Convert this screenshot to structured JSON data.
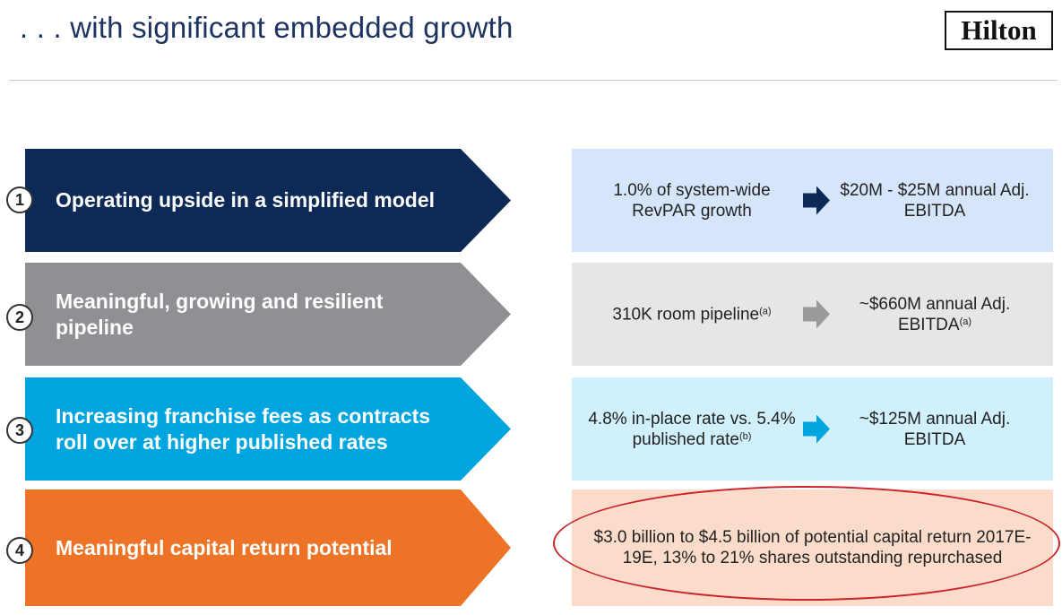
{
  "header": {
    "title": ". . . with significant embedded growth",
    "logo_text": "Hilton"
  },
  "colors": {
    "navy": "#0d2a57",
    "gray": "#8e9093",
    "cyan": "#00a5df",
    "orange": "#ed7326",
    "box_blue": "#d5e5fa",
    "box_gray": "#e6e6e6",
    "box_cyan": "#d0f0fb",
    "box_peach": "#fbdcca",
    "highlight_red": "#cc2229"
  },
  "rows": [
    {
      "number": "1",
      "label": "Operating upside in a simplified model",
      "left": "1.0% of system-wide RevPAR growth",
      "left_note": "",
      "right": "$20M - $25M annual Adj. EBITDA",
      "right_note": "",
      "arrow_icon": "right-arrow-icon"
    },
    {
      "number": "2",
      "label": "Meaningful, growing and resilient pipeline",
      "left": "310K room pipeline",
      "left_note": "(a)",
      "right": "~$660M annual Adj. EBITDA",
      "right_note": "(a)",
      "arrow_icon": "right-arrow-icon"
    },
    {
      "number": "3",
      "label": "Increasing franchise fees as contracts roll over at higher published rates",
      "left": "4.8% in-place rate vs. 5.4% published rate",
      "left_note": "(b)",
      "right": "~$125M annual Adj. EBITDA",
      "right_note": "",
      "arrow_icon": "right-arrow-icon"
    },
    {
      "number": "4",
      "label": "Meaningful capital return potential",
      "full_text": "$3.0 billion to $4.5 billion of potential capital return 2017E-19E, 13% to 21% shares outstanding repurchased"
    }
  ]
}
